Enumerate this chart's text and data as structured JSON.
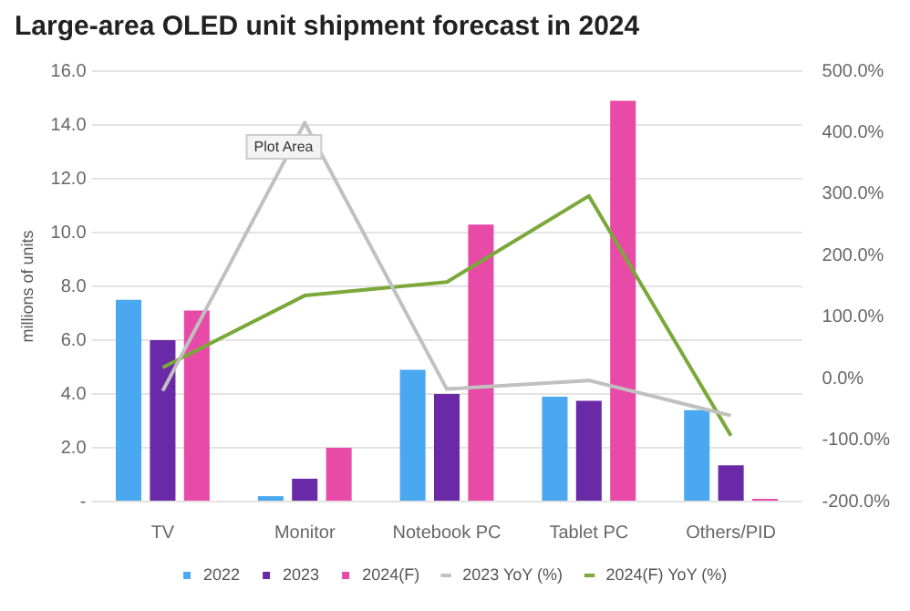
{
  "chart_data": {
    "type": "bar",
    "title": "Large-area OLED unit shipment forecast in 2024",
    "ylabel": "millions of units",
    "categories": [
      "TV",
      "Monitor",
      "Notebook PC",
      "Tablet PC",
      "Others/PID"
    ],
    "series": [
      {
        "name": "2022",
        "color": "#4aa8f0",
        "values": [
          7.5,
          0.2,
          4.9,
          3.9,
          3.4
        ]
      },
      {
        "name": "2023",
        "color": "#6a2aa8",
        "values": [
          6.0,
          0.85,
          4.0,
          3.75,
          1.35
        ]
      },
      {
        "name": "2024(F)",
        "color": "#e84aa8",
        "values": [
          7.1,
          2.0,
          10.3,
          14.9,
          0.1
        ]
      },
      {
        "name": "2023 YoY (%)",
        "type": "line",
        "axis": "y2",
        "color": "#c0c0c0",
        "values": [
          -20,
          416,
          -17,
          -3,
          -60
        ]
      },
      {
        "name": "2024(F) YoY (%)",
        "type": "line",
        "axis": "y2",
        "color": "#7aa83a",
        "values": [
          18,
          135,
          157,
          297,
          -93
        ]
      }
    ],
    "ylim": [
      0,
      16
    ],
    "yticks": [
      {
        "value": 0,
        "label": "-"
      },
      {
        "value": 2,
        "label": "2.0"
      },
      {
        "value": 4,
        "label": "4.0"
      },
      {
        "value": 6,
        "label": "6.0"
      },
      {
        "value": 8,
        "label": "8.0"
      },
      {
        "value": 10,
        "label": "10.0"
      },
      {
        "value": 12,
        "label": "12.0"
      },
      {
        "value": 14,
        "label": "14.0"
      },
      {
        "value": 16,
        "label": "16.0"
      }
    ],
    "y2lim": [
      -200,
      500
    ],
    "y2ticks": [
      {
        "value": -200,
        "label": "-200.0%"
      },
      {
        "value": -100,
        "label": "-100.0%"
      },
      {
        "value": 0,
        "label": "0.0%"
      },
      {
        "value": 100,
        "label": "100.0%"
      },
      {
        "value": 200,
        "label": "200.0%"
      },
      {
        "value": 300,
        "label": "300.0%"
      },
      {
        "value": 400,
        "label": "400.0%"
      },
      {
        "value": 500,
        "label": "500.0%"
      }
    ],
    "grid": "y",
    "legend": "bottom",
    "marker": "none",
    "annotations": [
      "Plot Area"
    ]
  }
}
